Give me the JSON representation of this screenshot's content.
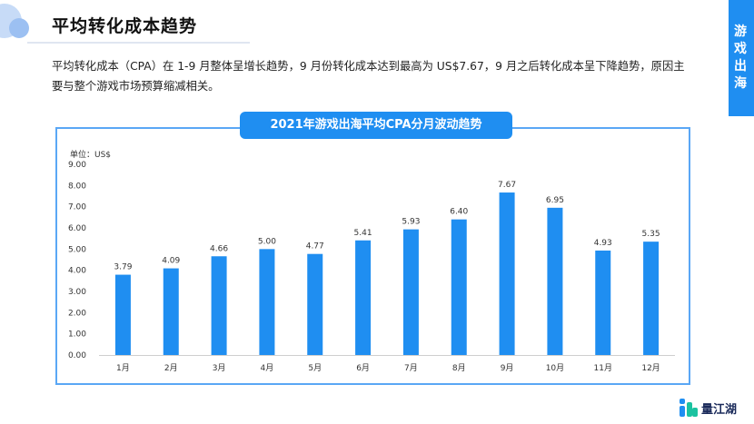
{
  "header": {
    "title": "平均转化成本趋势"
  },
  "side_tab": {
    "chars": [
      "游",
      "戏",
      "出",
      "海"
    ]
  },
  "description": "平均转化成本（CPA）在 1-9 月整体呈增长趋势，9 月份转化成本达到最高为 US$7.67，9 月之后转化成本呈下降趋势，原因主要与整个游戏市场预算缩减相关。",
  "brand": {
    "name": "量江湖"
  },
  "colors": {
    "accent": "#1f8ef1",
    "bar": "#1f8ef1",
    "frame": "#5aa7f5"
  },
  "chart_data": {
    "type": "bar",
    "title": "2021年游戏出海平均CPA分月波动趋势",
    "unit_label": "单位：US$",
    "categories": [
      "1月",
      "2月",
      "3月",
      "4月",
      "5月",
      "6月",
      "7月",
      "8月",
      "9月",
      "10月",
      "11月",
      "12月"
    ],
    "values": [
      3.79,
      4.09,
      4.66,
      5.0,
      4.77,
      5.41,
      5.93,
      6.4,
      7.67,
      6.95,
      4.93,
      5.35
    ],
    "value_labels": [
      "3.79",
      "4.09",
      "4.66",
      "5.00",
      "4.77",
      "5.41",
      "5.93",
      "6.40",
      "7.67",
      "6.95",
      "4.93",
      "5.35"
    ],
    "y_ticks": [
      "0.00",
      "1.00",
      "2.00",
      "3.00",
      "4.00",
      "5.00",
      "6.00",
      "7.00",
      "8.00",
      "9.00"
    ],
    "ylim": [
      0,
      9
    ],
    "grid": false,
    "legend": false
  }
}
